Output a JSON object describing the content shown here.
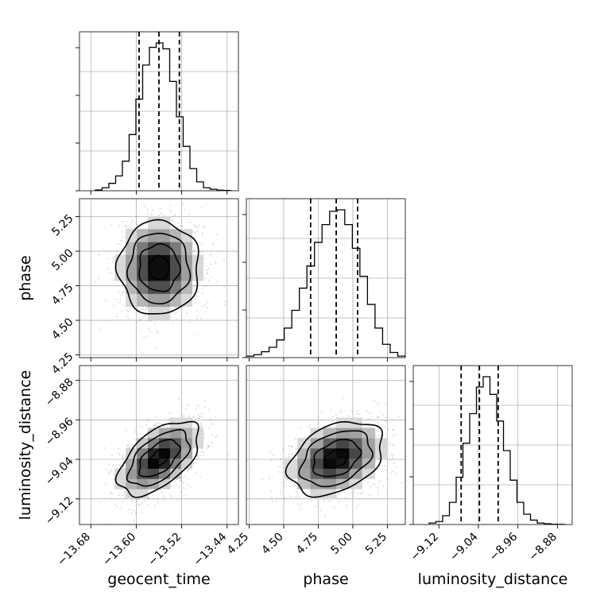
{
  "chart_data": {
    "type": "corner",
    "parameters": [
      "geocent_time",
      "phase",
      "luminosity_distance"
    ],
    "axis_labels": {
      "geocent_time": "geocent_time",
      "phase": "phase",
      "luminosity_distance": "luminosity_distance"
    },
    "ranges": {
      "geocent_time": [
        -13.7,
        -13.42
      ],
      "phase": [
        4.23,
        5.38
      ],
      "luminosity_distance": [
        -9.172,
        -8.85
      ]
    },
    "ticks": {
      "geocent_time": {
        "values": [
          -13.68,
          -13.6,
          -13.52,
          -13.44
        ],
        "labels": [
          "−13.68",
          "−13.60",
          "−13.52",
          "−13.44"
        ]
      },
      "phase": {
        "values": [
          4.25,
          4.5,
          4.75,
          5.0,
          5.25
        ],
        "labels": [
          "4.25",
          "4.50",
          "4.75",
          "5.00",
          "5.25"
        ]
      },
      "luminosity_distance": {
        "values": [
          -9.12,
          -9.04,
          -8.96,
          -8.88
        ],
        "labels": [
          "−9.12",
          "−9.04",
          "−8.96",
          "−8.88"
        ]
      }
    },
    "quantiles": {
      "geocent_time": [
        -13.595,
        -13.56,
        -13.524
      ],
      "phase": [
        4.695,
        4.88,
        5.035
      ],
      "luminosity_distance": [
        -9.075,
        -9.038,
        -9.0
      ]
    },
    "histograms": {
      "geocent_time": [
        0.005,
        0.02,
        0.05,
        0.1,
        0.2,
        0.38,
        0.62,
        0.85,
        0.97,
        1.0,
        0.96,
        0.74,
        0.5,
        0.3,
        0.15,
        0.06,
        0.02,
        0.01,
        0.004,
        0.002
      ],
      "phase": [
        0.01,
        0.02,
        0.04,
        0.07,
        0.12,
        0.2,
        0.32,
        0.47,
        0.62,
        0.78,
        0.9,
        0.99,
        1.0,
        0.9,
        0.74,
        0.55,
        0.36,
        0.2,
        0.09,
        0.035,
        0.01
      ],
      "luminosity_distance": [
        0.01,
        0.02,
        0.06,
        0.15,
        0.32,
        0.55,
        0.75,
        0.93,
        1.0,
        0.88,
        0.7,
        0.5,
        0.3,
        0.15,
        0.07,
        0.03,
        0.01,
        0.005,
        0.002,
        0.001
      ]
    },
    "correlations": [
      {
        "x": "geocent_time",
        "y": "phase",
        "rho": 0.0
      },
      {
        "x": "geocent_time",
        "y": "luminosity_distance",
        "rho": 0.55
      },
      {
        "x": "phase",
        "y": "luminosity_distance",
        "rho": 0.35
      }
    ],
    "levels": [
      0.5,
      1.0,
      1.5,
      2.0
    ],
    "grid": true
  }
}
